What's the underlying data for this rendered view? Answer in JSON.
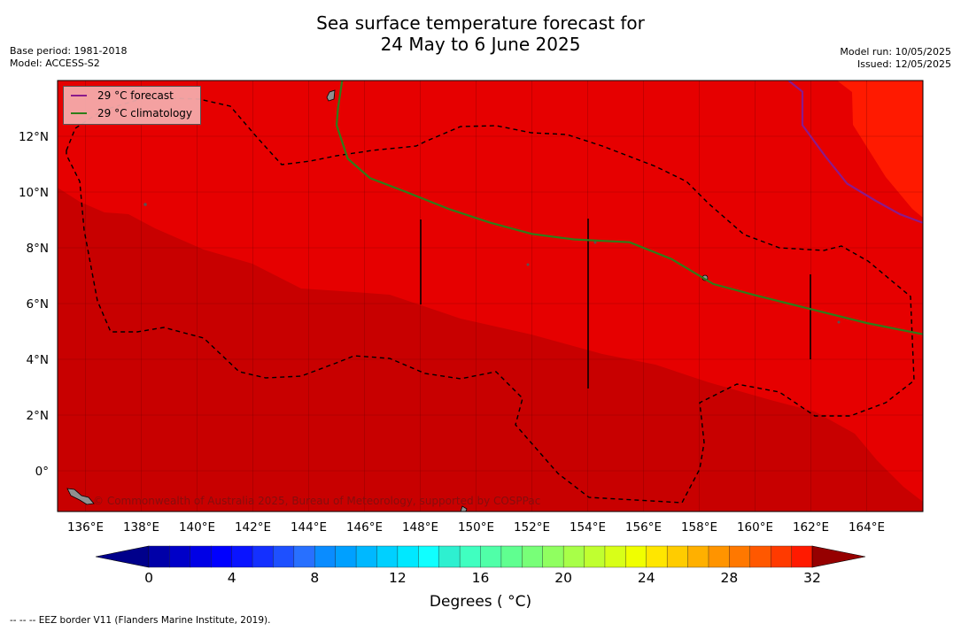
{
  "header": {
    "title_line1": "Sea surface temperature forecast for",
    "title_line2": "24 May to 6 June 2025",
    "base_period": "Base period: 1981-2018",
    "model": "Model: ACCESS-S2",
    "model_run": "Model run: 10/05/2025",
    "issued": "Issued: 12/05/2025"
  },
  "legend": {
    "forecast_label": "29 °C  forecast",
    "forecast_color": "#8b1a8b",
    "climatology_label": "29 °C  climatology",
    "climatology_color": "#2e7d1a"
  },
  "copyright": "© Commonwealth of Australia 2025, Bureau of Meteorology, supported by COSPPac",
  "footnote": "--  --  -- EEZ border V11 (Flanders Marine Institute, 2019).",
  "colorbar_label": "Degrees ( °C)",
  "chart_data": {
    "type": "heatmap",
    "x_axis": {
      "range": [
        135,
        166
      ],
      "ticks": [
        136,
        138,
        140,
        142,
        144,
        146,
        148,
        150,
        152,
        154,
        156,
        158,
        160,
        162,
        164
      ],
      "tick_labels": [
        "136°E",
        "138°E",
        "140°E",
        "142°E",
        "144°E",
        "146°E",
        "148°E",
        "150°E",
        "152°E",
        "154°E",
        "156°E",
        "158°E",
        "160°E",
        "162°E",
        "164°E"
      ]
    },
    "y_axis": {
      "range": [
        -1.5,
        14
      ],
      "ticks": [
        0,
        2,
        4,
        6,
        8,
        10,
        12
      ],
      "tick_labels": [
        "0°",
        "2°N",
        "4°N",
        "6°N",
        "8°N",
        "10°N",
        "12°N"
      ]
    },
    "grid": true,
    "legend_position": "top-left",
    "fields": [
      {
        "name": "above_29_5",
        "color": "#ff1a00",
        "approx_range_c": [
          29.5,
          30
        ]
      },
      {
        "name": "29_to_29_5",
        "color": "#e60000",
        "approx_range_c": [
          29,
          29.5
        ]
      },
      {
        "name": "28_5_to_29",
        "color": "#c90000",
        "approx_range_c": [
          28.5,
          29
        ]
      }
    ],
    "climatology_29C_line": [
      [
        145.2,
        14
      ],
      [
        145.05,
        13
      ],
      [
        145,
        12.4
      ],
      [
        145.4,
        11.2
      ],
      [
        146.2,
        10.5
      ],
      [
        147.5,
        10
      ],
      [
        149,
        9.4
      ],
      [
        150.5,
        8.9
      ],
      [
        152,
        8.5
      ],
      [
        153.5,
        8.3
      ],
      [
        155.5,
        8.2
      ],
      [
        157,
        7.6
      ],
      [
        158.5,
        6.7
      ],
      [
        160,
        6.3
      ],
      [
        162,
        5.8
      ],
      [
        164,
        5.3
      ],
      [
        166,
        4.9
      ]
    ],
    "forecast_29C_line": [
      [
        161.2,
        14
      ],
      [
        161.7,
        13.6
      ],
      [
        161.7,
        12.4
      ],
      [
        162.5,
        11.3
      ],
      [
        163.3,
        10.3
      ],
      [
        164.3,
        9.7
      ],
      [
        165.2,
        9.2
      ],
      [
        166,
        8.9
      ]
    ],
    "colorbar": {
      "min": 0,
      "max": 32,
      "step": 1,
      "tick_values": [
        0,
        4,
        8,
        12,
        16,
        20,
        24,
        28,
        32
      ],
      "tick_labels": [
        "0",
        "4",
        "8",
        "12",
        "16",
        "20",
        "24",
        "28",
        "32"
      ],
      "colors": [
        "#00008b",
        "#0000a8",
        "#0000c8",
        "#0000e6",
        "#0000ff",
        "#0a14ff",
        "#1430ff",
        "#1e50ff",
        "#2870ff",
        "#0a8cff",
        "#00a0ff",
        "#00b8ff",
        "#00d0ff",
        "#00e8ff",
        "#10ffff",
        "#2ef0d0",
        "#40ffc0",
        "#50ffa8",
        "#60ff90",
        "#78ff78",
        "#90ff60",
        "#a8ff48",
        "#c0ff30",
        "#d8ff18",
        "#f0ff00",
        "#ffe600",
        "#ffcc00",
        "#ffb000",
        "#ff9400",
        "#ff7800",
        "#ff5800",
        "#ff3a00",
        "#ff1a00",
        "#e60000",
        "#c80000",
        "#960000"
      ]
    }
  }
}
